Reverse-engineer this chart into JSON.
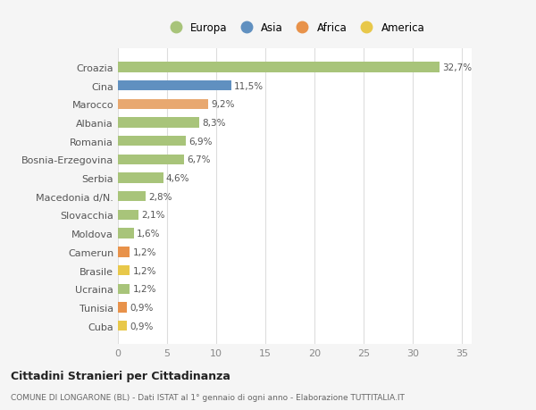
{
  "categories": [
    "Cuba",
    "Tunisia",
    "Ucraina",
    "Brasile",
    "Camerun",
    "Moldova",
    "Slovacchia",
    "Macedonia d/N.",
    "Serbia",
    "Bosnia-Erzegovina",
    "Romania",
    "Albania",
    "Marocco",
    "Cina",
    "Croazia"
  ],
  "values": [
    0.9,
    0.9,
    1.2,
    1.2,
    1.2,
    1.6,
    2.1,
    2.8,
    4.6,
    6.7,
    6.9,
    8.3,
    9.2,
    11.5,
    32.7
  ],
  "labels": [
    "0,9%",
    "0,9%",
    "1,2%",
    "1,2%",
    "1,2%",
    "1,6%",
    "2,1%",
    "2,8%",
    "4,6%",
    "6,7%",
    "6,9%",
    "8,3%",
    "9,2%",
    "11,5%",
    "32,7%"
  ],
  "colors": [
    "#e8c84a",
    "#e8924a",
    "#a8c47a",
    "#e8c84a",
    "#e8924a",
    "#a8c47a",
    "#a8c47a",
    "#a8c47a",
    "#a8c47a",
    "#a8c47a",
    "#a8c47a",
    "#a8c47a",
    "#e8a870",
    "#6090c0",
    "#a8c47a"
  ],
  "continent_colors": {
    "Europa": "#a8c47a",
    "Asia": "#6090c0",
    "Africa": "#e8924a",
    "America": "#e8c84a"
  },
  "legend_labels": [
    "Europa",
    "Asia",
    "Africa",
    "America"
  ],
  "xlim": [
    0,
    36
  ],
  "xticks": [
    0,
    5,
    10,
    15,
    20,
    25,
    30,
    35
  ],
  "title": "Cittadini Stranieri per Cittadinanza",
  "subtitle": "COMUNE DI LONGARONE (BL) - Dati ISTAT al 1° gennaio di ogni anno - Elaborazione TUTTITALIA.IT",
  "background_color": "#f5f5f5",
  "bar_bg_color": "#ffffff",
  "grid_color": "#dddddd"
}
